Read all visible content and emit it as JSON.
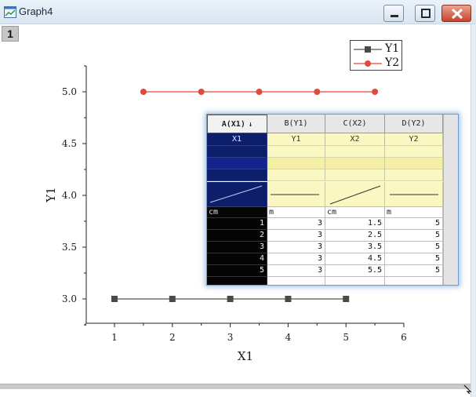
{
  "window": {
    "title": "Graph4"
  },
  "layer_badge": "1",
  "legend": [
    {
      "label": "Y1",
      "color": "#555555",
      "marker": "square"
    },
    {
      "label": "Y2",
      "color": "#e2483c",
      "marker": "circle"
    }
  ],
  "chart_data": {
    "type": "line",
    "xlabel": "X1",
    "ylabel": "Y1",
    "xlim": [
      0.5,
      6
    ],
    "ylim": [
      2.75,
      5.25
    ],
    "x_ticks": [
      "1",
      "2",
      "3",
      "4",
      "5",
      "6"
    ],
    "y_ticks": [
      "3.0",
      "3.5",
      "4.0",
      "4.5",
      "5.0"
    ],
    "series": [
      {
        "name": "Y1",
        "color": "#555555",
        "marker": "square",
        "x": [
          1,
          2,
          3,
          4,
          5
        ],
        "y": [
          3,
          3,
          3,
          3,
          3
        ]
      },
      {
        "name": "Y2",
        "color": "#e2483c",
        "marker": "circle",
        "x": [
          1.5,
          2.5,
          3.5,
          4.5,
          5.5
        ],
        "y": [
          5,
          5,
          5,
          5,
          5
        ]
      }
    ]
  },
  "worksheet": {
    "columns": [
      {
        "header": "A(X1)",
        "sort_mark": "↓",
        "long_name": "X1",
        "unit": "cm",
        "sparkline": "rising",
        "values": [
          "1",
          "2",
          "3",
          "4",
          "5"
        ]
      },
      {
        "header": "B(Y1)",
        "sort_mark": "",
        "long_name": "Y1",
        "unit": "m",
        "sparkline": "flat",
        "values": [
          "3",
          "3",
          "3",
          "3",
          "3"
        ]
      },
      {
        "header": "C(X2)",
        "sort_mark": "",
        "long_name": "X2",
        "unit": "cm",
        "sparkline": "rising",
        "values": [
          "1.5",
          "2.5",
          "3.5",
          "4.5",
          "5.5"
        ]
      },
      {
        "header": "D(Y2)",
        "sort_mark": "",
        "long_name": "Y2",
        "unit": "m",
        "sparkline": "flat",
        "values": [
          "5",
          "5",
          "5",
          "5",
          "5"
        ]
      }
    ]
  },
  "colors": {
    "y1_series": "#555555",
    "y2_series": "#e2483c",
    "x_column_bg": "#0d1f6b",
    "label_row_bg": "#fbf7c2"
  }
}
